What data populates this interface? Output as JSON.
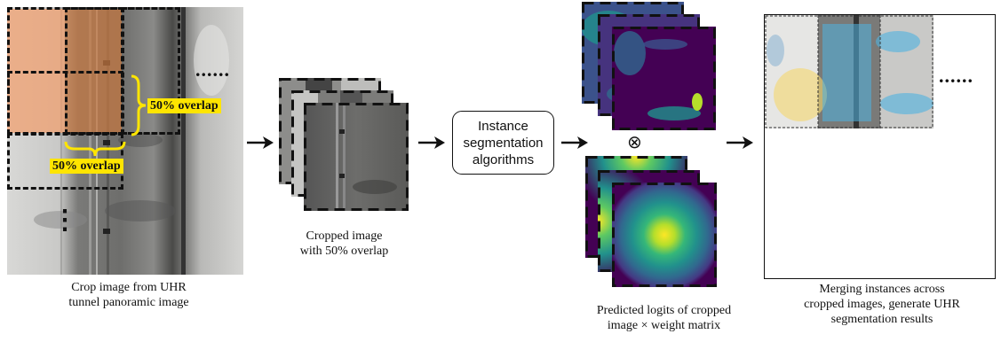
{
  "panel1": {
    "overlap_label_1": "50% overlap",
    "overlap_label_2": "50% overlap",
    "ellipsis_h": "......",
    "ellipsis_v": "⋮",
    "caption_line1": "Crop image from UHR",
    "caption_line2": "tunnel panoramic image"
  },
  "panel2": {
    "caption_line1": "Cropped image",
    "caption_line2": "with 50% overlap"
  },
  "panel3": {
    "box_line1": "Instance",
    "box_line2": "segmentation",
    "box_line3": "algorithms"
  },
  "panel4": {
    "operator": "⊗",
    "caption_line1": "Predicted logits of cropped",
    "caption_line2": "image × weight matrix"
  },
  "panel5": {
    "ellipsis": "......",
    "caption_line1": "Merging instances across",
    "caption_line2": "cropped images, generate UHR",
    "caption_line3": "segmentation results"
  },
  "colors": {
    "overlap_highlight": "#ffe500",
    "crop_overlay": "#f0a070",
    "segmentation_blue": "#4fb3e0",
    "viridis_dark": "#440154",
    "viridis_yellow": "#fde725"
  }
}
